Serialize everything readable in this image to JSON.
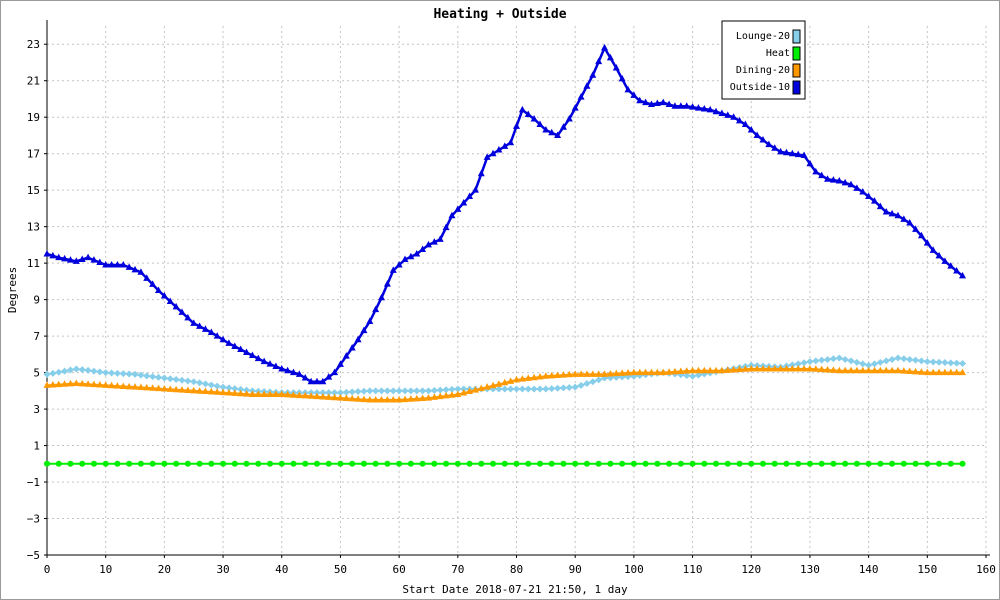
{
  "chart_data": {
    "type": "line",
    "title": "Heating + Outside",
    "xlabel": "Start Date 2018-07-21 21:50, 1 day",
    "ylabel": "Degrees",
    "xlim": [
      0,
      160
    ],
    "ylim": [
      -5,
      24
    ],
    "x_ticks": [
      0,
      10,
      20,
      30,
      40,
      50,
      60,
      70,
      80,
      90,
      100,
      110,
      120,
      130,
      140,
      150,
      160
    ],
    "y_ticks": [
      -5,
      -3,
      -1,
      1,
      3,
      5,
      7,
      9,
      11,
      13,
      15,
      17,
      19,
      21,
      23
    ],
    "grid": true,
    "legend_position": "top-right",
    "series": [
      {
        "name": "Lounge-20",
        "color": "#87ceeb",
        "marker": "diamond",
        "x": [
          0,
          5,
          10,
          15,
          20,
          25,
          30,
          35,
          40,
          45,
          50,
          55,
          60,
          65,
          70,
          75,
          80,
          85,
          90,
          95,
          100,
          105,
          110,
          115,
          120,
          125,
          130,
          135,
          140,
          145,
          150,
          156
        ],
        "y": [
          4.9,
          5.2,
          5.0,
          4.9,
          4.7,
          4.5,
          4.2,
          4.0,
          3.9,
          3.9,
          3.9,
          4.0,
          4.0,
          4.0,
          4.1,
          4.1,
          4.1,
          4.1,
          4.2,
          4.7,
          4.8,
          5.0,
          4.8,
          5.1,
          5.4,
          5.3,
          5.6,
          5.8,
          5.4,
          5.8,
          5.6,
          5.5
        ]
      },
      {
        "name": "Heat",
        "color": "#00ee00",
        "marker": "circle",
        "x": [
          0,
          156
        ],
        "y": [
          0,
          0
        ]
      },
      {
        "name": "Dining-20",
        "color": "#ff9900",
        "marker": "triangle",
        "x": [
          0,
          5,
          10,
          15,
          20,
          25,
          30,
          35,
          40,
          45,
          50,
          55,
          60,
          65,
          70,
          75,
          80,
          85,
          90,
          95,
          100,
          105,
          110,
          115,
          120,
          125,
          130,
          135,
          140,
          145,
          150,
          156
        ],
        "y": [
          4.3,
          4.4,
          4.3,
          4.2,
          4.1,
          4.0,
          3.9,
          3.8,
          3.8,
          3.7,
          3.6,
          3.5,
          3.5,
          3.6,
          3.8,
          4.2,
          4.6,
          4.8,
          4.9,
          4.9,
          5.0,
          5.0,
          5.1,
          5.1,
          5.2,
          5.2,
          5.2,
          5.1,
          5.1,
          5.1,
          5.0,
          5.0
        ]
      },
      {
        "name": "Outside-10",
        "color": "#0000dd",
        "marker": "triangle",
        "x": [
          0,
          2,
          5,
          7,
          10,
          13,
          16,
          19,
          22,
          25,
          28,
          31,
          34,
          37,
          40,
          43,
          45,
          47,
          49,
          51,
          53,
          55,
          57,
          59,
          61,
          63,
          65,
          67,
          69,
          71,
          73,
          75,
          77,
          79,
          81,
          83,
          85,
          87,
          89,
          91,
          93,
          95,
          97,
          99,
          101,
          103,
          105,
          107,
          109,
          111,
          113,
          115,
          117,
          119,
          121,
          123,
          125,
          127,
          129,
          131,
          133,
          135,
          137,
          139,
          141,
          143,
          145,
          147,
          149,
          151,
          153,
          156
        ],
        "y": [
          11.5,
          11.3,
          11.1,
          11.3,
          10.9,
          10.9,
          10.5,
          9.5,
          8.6,
          7.7,
          7.2,
          6.6,
          6.1,
          5.6,
          5.2,
          4.9,
          4.5,
          4.5,
          5.0,
          5.9,
          6.8,
          7.8,
          9.1,
          10.6,
          11.2,
          11.5,
          12.0,
          12.3,
          13.6,
          14.3,
          15.0,
          16.8,
          17.2,
          17.6,
          19.4,
          18.9,
          18.3,
          18.0,
          18.9,
          20.1,
          21.3,
          22.8,
          21.7,
          20.5,
          19.9,
          19.7,
          19.8,
          19.6,
          19.6,
          19.5,
          19.4,
          19.2,
          19.0,
          18.6,
          18.0,
          17.5,
          17.1,
          17.0,
          16.9,
          16.0,
          15.6,
          15.5,
          15.3,
          14.9,
          14.4,
          13.8,
          13.6,
          13.2,
          12.5,
          11.7,
          11.1,
          10.3
        ]
      }
    ]
  }
}
